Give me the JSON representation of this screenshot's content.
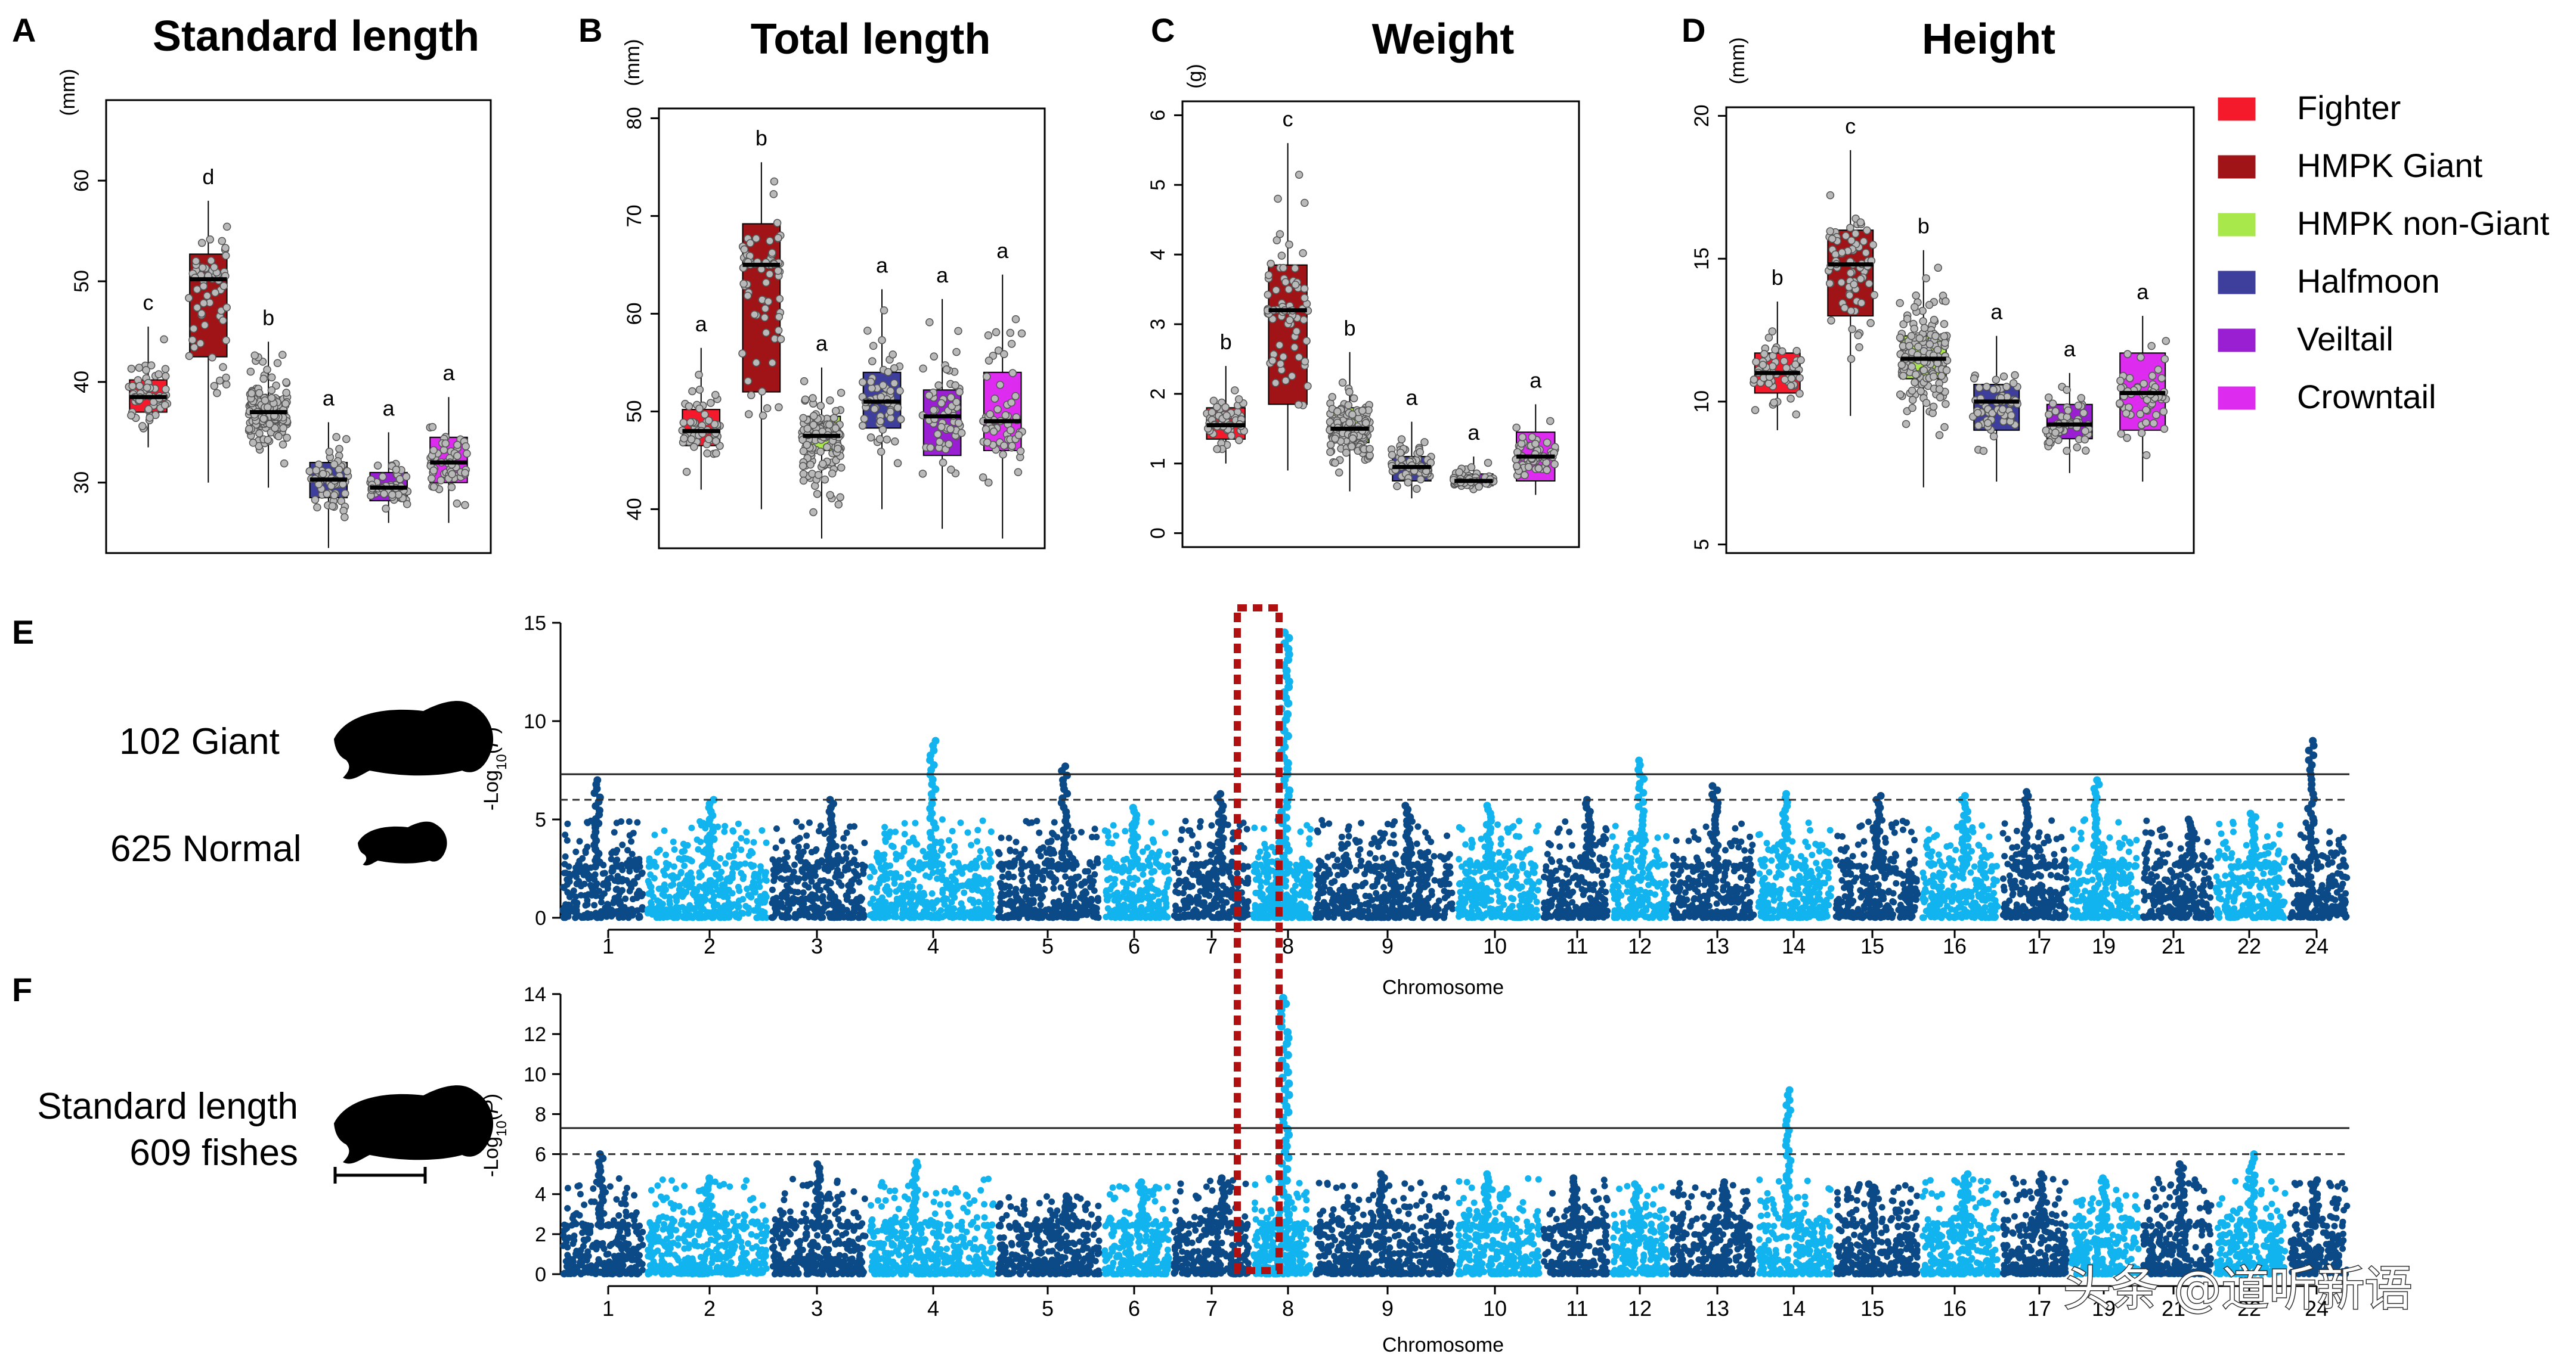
{
  "legend": [
    {
      "label": "Fighter",
      "color": "#f5192c"
    },
    {
      "label": "HMPK Giant",
      "color": "#a01418"
    },
    {
      "label": "HMPK non-Giant",
      "color": "#a8e84a"
    },
    {
      "label": "Halfmoon",
      "color": "#3e3e9c"
    },
    {
      "label": "Veiltail",
      "color": "#9a1fd2"
    },
    {
      "label": "Crowntail",
      "color": "#dd2cf0"
    }
  ],
  "panel_e_side": {
    "top": "102 Giant",
    "bottom": "625 Normal"
  },
  "panel_f_side": {
    "line1": "Standard length",
    "line2": "609 fishes"
  },
  "watermark": "头条 @道听新语",
  "chart_data": [
    {
      "type": "box",
      "panel": "A",
      "title": "Standard length",
      "ylabel": "(mm)",
      "ylim": [
        23,
        68
      ],
      "yticks": [
        30,
        40,
        50,
        60
      ],
      "groups": [
        "Fighter",
        "HMPK Giant",
        "HMPK non-Giant",
        "Halfmoon",
        "Veiltail",
        "Crowntail"
      ],
      "letters": [
        "c",
        "d",
        "b",
        "a",
        "a",
        "a"
      ],
      "boxes": [
        {
          "min": 33.5,
          "q1": 37,
          "median": 38.5,
          "q3": 40.2,
          "max": 45.5
        },
        {
          "min": 30,
          "q1": 42.5,
          "median": 50.2,
          "q3": 52.7,
          "max": 58
        },
        {
          "min": 29.5,
          "q1": 35.5,
          "median": 37,
          "q3": 38.5,
          "max": 44
        },
        {
          "min": 23.5,
          "q1": 28.5,
          "median": 30.3,
          "q3": 32,
          "max": 36
        },
        {
          "min": 26,
          "q1": 28.2,
          "median": 29.5,
          "q3": 31,
          "max": 35
        },
        {
          "min": 26,
          "q1": 30,
          "median": 32,
          "q3": 34.5,
          "max": 38.5
        }
      ]
    },
    {
      "type": "box",
      "panel": "B",
      "title": "Total length",
      "ylabel": "(mm)",
      "ylim": [
        36,
        81
      ],
      "yticks": [
        40,
        50,
        60,
        70,
        80
      ],
      "groups": [
        "Fighter",
        "HMPK Giant",
        "HMPK non-Giant",
        "Halfmoon",
        "Veiltail",
        "Crowntail"
      ],
      "letters": [
        "a",
        "b",
        "a",
        "a",
        "a",
        "a"
      ],
      "boxes": [
        {
          "min": 42,
          "q1": 46.5,
          "median": 48,
          "q3": 50.2,
          "max": 56.5
        },
        {
          "min": 40,
          "q1": 52,
          "median": 65,
          "q3": 69.2,
          "max": 75.5
        },
        {
          "min": 37,
          "q1": 46,
          "median": 47.5,
          "q3": 49.5,
          "max": 54.5
        },
        {
          "min": 40,
          "q1": 48.3,
          "median": 51,
          "q3": 54,
          "max": 62.5
        },
        {
          "min": 38,
          "q1": 45.5,
          "median": 49.5,
          "q3": 52.2,
          "max": 61.5
        },
        {
          "min": 37,
          "q1": 46,
          "median": 49,
          "q3": 54,
          "max": 64
        }
      ]
    },
    {
      "type": "box",
      "panel": "C",
      "title": "Weight",
      "ylabel": "(g)",
      "ylim": [
        -0.2,
        6.2
      ],
      "yticks": [
        0,
        1,
        2,
        3,
        4,
        5,
        6
      ],
      "groups": [
        "Fighter",
        "HMPK Giant",
        "HMPK non-Giant",
        "Halfmoon",
        "Veiltail",
        "Crowntail"
      ],
      "letters": [
        "b",
        "c",
        "b",
        "a",
        "a",
        "a"
      ],
      "boxes": [
        {
          "min": 1.0,
          "q1": 1.35,
          "median": 1.55,
          "q3": 1.8,
          "max": 2.4
        },
        {
          "min": 0.9,
          "q1": 1.85,
          "median": 3.2,
          "q3": 3.85,
          "max": 5.6
        },
        {
          "min": 0.6,
          "q1": 1.3,
          "median": 1.5,
          "q3": 1.8,
          "max": 2.6
        },
        {
          "min": 0.5,
          "q1": 0.75,
          "median": 0.95,
          "q3": 1.1,
          "max": 1.6
        },
        {
          "min": 0.6,
          "q1": 0.68,
          "median": 0.75,
          "q3": 0.85,
          "max": 1.1
        },
        {
          "min": 0.55,
          "q1": 0.75,
          "median": 1.1,
          "q3": 1.45,
          "max": 1.85
        }
      ]
    },
    {
      "type": "box",
      "panel": "D",
      "title": "Height",
      "ylabel": "(mm)",
      "ylim": [
        4.7,
        20.3
      ],
      "yticks": [
        5,
        10,
        15,
        20
      ],
      "groups": [
        "Fighter",
        "HMPK Giant",
        "HMPK non-Giant",
        "Halfmoon",
        "Veiltail",
        "Crowntail"
      ],
      "letters": [
        "b",
        "c",
        "b",
        "a",
        "a",
        "a"
      ],
      "boxes": [
        {
          "min": 9,
          "q1": 10.3,
          "median": 11,
          "q3": 11.7,
          "max": 13.5
        },
        {
          "min": 9.5,
          "q1": 13,
          "median": 14.8,
          "q3": 16,
          "max": 18.8
        },
        {
          "min": 7,
          "q1": 10.8,
          "median": 11.5,
          "q3": 12.3,
          "max": 15.3
        },
        {
          "min": 7.2,
          "q1": 9,
          "median": 10,
          "q3": 10.6,
          "max": 12.3
        },
        {
          "min": 7.5,
          "q1": 8.7,
          "median": 9.2,
          "q3": 9.9,
          "max": 11
        },
        {
          "min": 7.2,
          "q1": 9,
          "median": 10.3,
          "q3": 11.7,
          "max": 13
        }
      ]
    },
    {
      "type": "manhattan",
      "panel": "E",
      "xlabel": "Chromosome",
      "ylabel": "-Log10(P)",
      "ylim": [
        0,
        15
      ],
      "yticks": [
        0,
        5,
        10,
        15
      ],
      "threshold_solid": 7.3,
      "threshold_dashed": 6.0,
      "chromosome_labels": [
        "1",
        "2",
        "3",
        "4",
        "5",
        "6",
        "7",
        "8",
        "9",
        "10",
        "11",
        "12",
        "13",
        "14",
        "15",
        "16",
        "17",
        "19",
        "21",
        "22",
        "24"
      ],
      "chromosome_peaks": [
        7.0,
        6.0,
        6.0,
        9.0,
        7.7,
        5.6,
        6.3,
        14.5,
        5.7,
        5.7,
        6.0,
        8.0,
        6.7,
        6.3,
        6.2,
        6.2,
        6.4,
        7.0,
        5.0,
        5.3,
        9.0
      ],
      "highlight_chromosome": "8"
    },
    {
      "type": "manhattan",
      "panel": "F",
      "xlabel": "Chromosome",
      "ylabel": "-Log10(P)",
      "ylim": [
        0,
        14
      ],
      "yticks": [
        0,
        2,
        4,
        6,
        8,
        10,
        12,
        14
      ],
      "threshold_solid": 7.3,
      "threshold_dashed": 6.0,
      "chromosome_labels": [
        "1",
        "2",
        "3",
        "4",
        "5",
        "6",
        "7",
        "8",
        "9",
        "10",
        "11",
        "12",
        "13",
        "14",
        "15",
        "16",
        "17",
        "19",
        "21",
        "22",
        "24"
      ],
      "chromosome_peaks": [
        6.0,
        4.8,
        5.5,
        5.6,
        3.9,
        4.6,
        4.8,
        13.8,
        5.0,
        5.0,
        4.8,
        4.5,
        4.6,
        9.2,
        4.5,
        5.0,
        5.0,
        4.8,
        5.5,
        6.0,
        4.7
      ],
      "highlight_chromosome": "8"
    }
  ]
}
